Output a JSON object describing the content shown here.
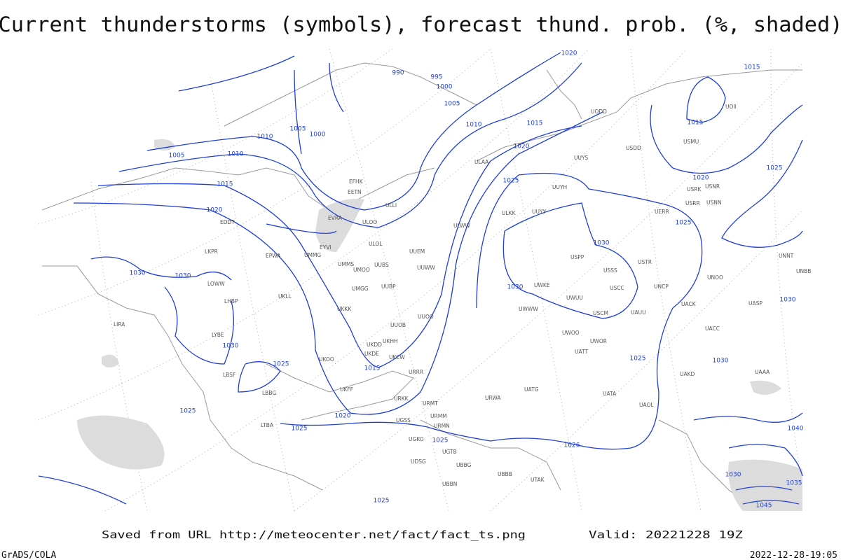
{
  "header": {
    "title": "Current thunderstorms (symbols), forecast thund. prob. (%, shaded)"
  },
  "isobar_labels": [
    1020,
    1015,
    990,
    995,
    1000,
    1005,
    1010,
    1015,
    1010,
    1005,
    1000,
    1005,
    1010,
    1015,
    1020,
    1020,
    1025,
    1015,
    1020,
    1025,
    1025,
    1030,
    1030,
    1030,
    1030,
    1030,
    1030,
    1025,
    1015,
    1020,
    1025,
    1025,
    1030,
    1025,
    1025,
    1026,
    1025,
    1030,
    1040,
    1035,
    1045
  ],
  "station_labels": [
    "EFHK",
    "EETN",
    "ULLI",
    "EVRA",
    "ULOO",
    "EYVI",
    "UUEM",
    "ULOL",
    "UMMG",
    "UMMS",
    "UMOO",
    "UUBS",
    "UUWW",
    "UMGG",
    "UUBP",
    "UKLL",
    "UKKK",
    "UUOO",
    "UUOB",
    "UKHH",
    "UKDD",
    "UKDE",
    "UKCW",
    "URRR",
    "ULAA",
    "UUYS",
    "UUYH",
    "ULKK",
    "UUYY",
    "ULWW",
    "USPP",
    "USSS",
    "USTR",
    "UWKE",
    "USCC",
    "UWUU",
    "UWWW",
    "USCM",
    "UAUU",
    "UWOO",
    "UWOR",
    "UATT",
    "URWA",
    "UATG",
    "UATA",
    "UAOL",
    "UACC",
    "UAKD",
    "UAAA",
    "UASP",
    "USRR",
    "USNN",
    "USRK",
    "USNR",
    "USMU",
    "UODD",
    "UOII",
    "USDD",
    "UERR",
    "UNCP",
    "UACK",
    "UNOO",
    "UNNT",
    "UNBB",
    "UTAK",
    "EDDT",
    "EPWA",
    "LKPR",
    "LOWW",
    "LHBP",
    "LYBE",
    "LBSF",
    "LBBG",
    "LIRA",
    "LTBA",
    "UKOO",
    "UKFF",
    "URKK",
    "URMT",
    "URMM",
    "URMN",
    "UGSS",
    "UGKO",
    "UGTB",
    "UDSG",
    "UBBG",
    "UBBB",
    "UBBN"
  ],
  "footer": {
    "source": "Saved from URL http://meteocenter.net/fact/fact_ts.png",
    "valid": "Valid: 20221228 19Z",
    "software": "GrADS/COLA",
    "timestamp": "2022-12-28-19:05"
  }
}
